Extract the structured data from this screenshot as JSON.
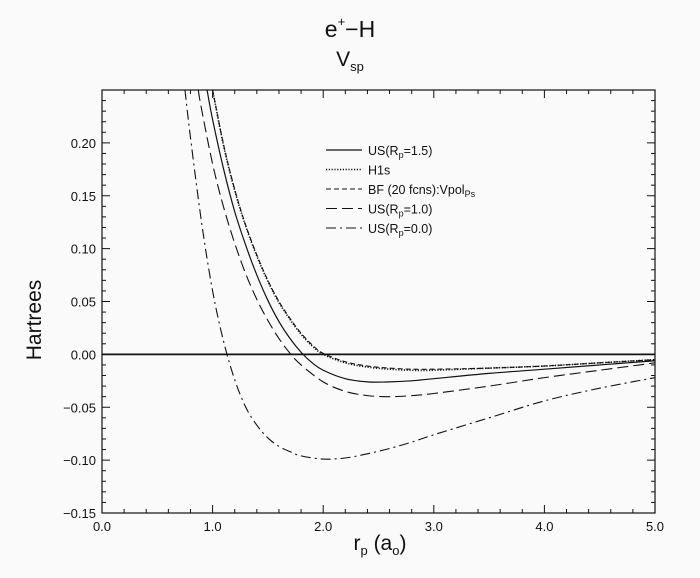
{
  "title_html": {
    "main": "e",
    "sup": "+",
    "rest": "−H"
  },
  "subtitle": {
    "main": "V",
    "sub": "sp"
  },
  "chart_data": {
    "type": "line",
    "title": "e+−H",
    "subtitle": "Vsp",
    "xlabel": "rp (ao)",
    "ylabel": "Hartrees",
    "xlim": [
      0.0,
      5.0
    ],
    "ylim": [
      -0.15,
      0.25
    ],
    "x_ticks": [
      "0.0",
      "1.0",
      "2.0",
      "3.0",
      "4.0",
      "5.0"
    ],
    "y_ticks": [
      "0.20",
      "0.15",
      "0.10",
      "0.05",
      "0.00",
      "−0.05",
      "−0.10",
      "−0.15"
    ],
    "legend_position": "upper-right",
    "grid": false,
    "series": [
      {
        "name": "US(Rp=1.5)",
        "style": "solid",
        "x": [
          0.95,
          1.0,
          1.1,
          1.2,
          1.3,
          1.4,
          1.5,
          1.6,
          1.7,
          1.8,
          1.9,
          2.0,
          2.2,
          2.4,
          2.6,
          2.8,
          3.0,
          3.5,
          4.0,
          4.5,
          5.0
        ],
        "y": [
          0.25,
          0.222,
          0.175,
          0.135,
          0.103,
          0.075,
          0.051,
          0.031,
          0.015,
          0.002,
          -0.008,
          -0.015,
          -0.023,
          -0.026,
          -0.026,
          -0.025,
          -0.023,
          -0.018,
          -0.014,
          -0.01,
          -0.006
        ]
      },
      {
        "name": "H1s",
        "style": "dotted",
        "x": [
          1.0,
          1.1,
          1.2,
          1.3,
          1.4,
          1.5,
          1.6,
          1.7,
          1.8,
          1.9,
          2.0,
          2.2,
          2.4,
          2.6,
          2.8,
          3.0,
          3.5,
          4.0,
          4.5,
          5.0
        ],
        "y": [
          0.25,
          0.197,
          0.155,
          0.121,
          0.093,
          0.069,
          0.049,
          0.033,
          0.019,
          0.008,
          0.0,
          -0.008,
          -0.012,
          -0.014,
          -0.015,
          -0.015,
          -0.013,
          -0.011,
          -0.008,
          -0.005
        ]
      },
      {
        "name": "BF (20 fcns):VpolPs",
        "style": "short-dash",
        "x": [
          1.0,
          1.1,
          1.2,
          1.3,
          1.4,
          1.5,
          1.6,
          1.7,
          1.8,
          1.9,
          2.0,
          2.2,
          2.4,
          2.6,
          2.8,
          3.0,
          3.5,
          4.0,
          4.5,
          5.0
        ],
        "y": [
          0.25,
          0.198,
          0.156,
          0.122,
          0.094,
          0.07,
          0.05,
          0.034,
          0.02,
          0.009,
          0.001,
          -0.007,
          -0.011,
          -0.013,
          -0.014,
          -0.014,
          -0.013,
          -0.011,
          -0.008,
          -0.005
        ]
      },
      {
        "name": "US(Rp=1.0)",
        "style": "long-dash",
        "x": [
          0.87,
          0.9,
          1.0,
          1.1,
          1.2,
          1.3,
          1.4,
          1.5,
          1.6,
          1.7,
          1.8,
          2.0,
          2.2,
          2.4,
          2.6,
          2.8,
          3.0,
          3.5,
          4.0,
          4.5,
          5.0
        ],
        "y": [
          0.25,
          0.232,
          0.18,
          0.139,
          0.105,
          0.076,
          0.052,
          0.032,
          0.015,
          0.001,
          -0.01,
          -0.026,
          -0.035,
          -0.039,
          -0.04,
          -0.039,
          -0.037,
          -0.03,
          -0.022,
          -0.015,
          -0.008
        ]
      },
      {
        "name": "US(Rp=0.0)",
        "style": "dash-dot",
        "x": [
          0.75,
          0.8,
          0.9,
          1.0,
          1.1,
          1.2,
          1.3,
          1.4,
          1.5,
          1.6,
          1.7,
          1.8,
          2.0,
          2.2,
          2.4,
          2.6,
          2.8,
          3.0,
          3.5,
          4.0,
          4.5,
          5.0
        ],
        "y": [
          0.25,
          0.205,
          0.125,
          0.06,
          0.012,
          -0.024,
          -0.05,
          -0.067,
          -0.079,
          -0.087,
          -0.092,
          -0.096,
          -0.099,
          -0.098,
          -0.094,
          -0.089,
          -0.083,
          -0.076,
          -0.06,
          -0.044,
          -0.032,
          -0.022
        ]
      }
    ]
  },
  "legend_labels": [
    {
      "main": "US(R",
      "sub": "p",
      "rest": "=1.5)"
    },
    {
      "main": "H1s",
      "sub": "",
      "rest": ""
    },
    {
      "main": "BF (20 fcns):Vpol",
      "sub": "Ps",
      "rest": ""
    },
    {
      "main": "US(R",
      "sub": "p",
      "rest": "=1.0)"
    },
    {
      "main": "US(R",
      "sub": "p",
      "rest": "=0.0)"
    }
  ],
  "axis_label_parts": {
    "x": {
      "main": "r",
      "sub": "p",
      "mid": " (a",
      "sub2": "o",
      "end": ")"
    }
  }
}
